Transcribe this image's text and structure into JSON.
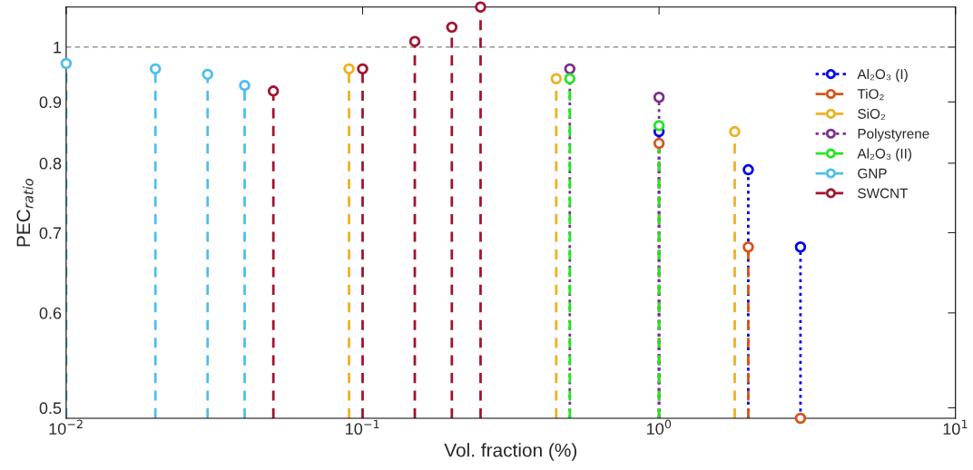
{
  "chart_data": {
    "type": "lollipop",
    "xlabel": "Vol. fraction (%)",
    "ylabel": "PEC$_{ratio}$",
    "log": "xy",
    "xlim": [
      0.01,
      10
    ],
    "ylim": [
      0.49,
      1.08
    ],
    "xticks": [
      {
        "value": 0.01,
        "label": "10$^{−2}$"
      },
      {
        "value": 0.1,
        "label": "10$^{−1}$"
      },
      {
        "value": 1,
        "label": "10$^{0}$"
      },
      {
        "value": 10,
        "label": "10$^{1}$"
      }
    ],
    "yticks": [
      0.5,
      0.6,
      0.7,
      0.8,
      0.9,
      1
    ],
    "marker": "circle",
    "grid": false,
    "legend": "top right",
    "ref_lines": [
      {
        "axis": "y",
        "value": 1,
        "color": "#808080",
        "line_style": "dashed"
      }
    ],
    "series": [
      {
        "name": "Al₂O₃ (I)",
        "color": "#0000e6",
        "line_style": "dotted",
        "x": [
          1,
          2,
          3
        ],
        "values": [
          0.85,
          0.79,
          0.681
        ]
      },
      {
        "name": "TiO₂",
        "color": "#d95319",
        "line_style": "dashed",
        "x": [
          1,
          2,
          3
        ],
        "values": [
          0.831,
          0.681,
          0.49
        ]
      },
      {
        "name": "SiO₂",
        "color": "#edb120",
        "line_style": "dashed",
        "x": [
          0.09,
          0.45,
          1.8
        ],
        "values": [
          0.959,
          0.941,
          0.85
        ]
      },
      {
        "name": "Polystyrene",
        "color": "#7e2f8e",
        "line_style": "dotted",
        "x": [
          0.5,
          1
        ],
        "values": [
          0.959,
          0.908
        ]
      },
      {
        "name": "Al₂O₃ (II)",
        "color": "#22e622",
        "line_style": "dashed",
        "x": [
          0.5,
          1
        ],
        "values": [
          0.941,
          0.86
        ]
      },
      {
        "name": "GNP",
        "color": "#4dbeee",
        "line_style": "dashed",
        "x": [
          0.01,
          0.02,
          0.03,
          0.04
        ],
        "values": [
          0.969,
          0.959,
          0.949,
          0.929
        ]
      },
      {
        "name": "SWCNT",
        "color": "#a2142f",
        "line_style": "dashed",
        "x": [
          0.05,
          0.1,
          0.15,
          0.2,
          0.25
        ],
        "values": [
          0.919,
          0.959,
          1.011,
          1.039,
          1.08
        ]
      }
    ]
  }
}
